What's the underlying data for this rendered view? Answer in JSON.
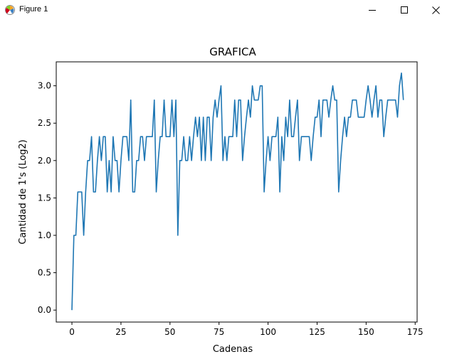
{
  "window": {
    "title": "Figure 1",
    "icon": "matplotlib-figure-icon",
    "controls": [
      "minimize-icon",
      "maximize-icon",
      "close-icon"
    ]
  },
  "chart_data": {
    "type": "line",
    "title": "GRAFICA",
    "xlabel": "Cadenas",
    "ylabel": "Cantidad de 1's (Log2)",
    "xlim": [
      -8,
      176
    ],
    "ylim": [
      -0.16,
      3.32
    ],
    "xticks": [
      0,
      25,
      50,
      75,
      100,
      125,
      150,
      175
    ],
    "xtick_labels": [
      "0",
      "25",
      "50",
      "75",
      "100",
      "125",
      "150",
      "175"
    ],
    "yticks": [
      0.0,
      0.5,
      1.0,
      1.5,
      2.0,
      2.5,
      3.0
    ],
    "ytick_labels": [
      "0.0",
      "0.5",
      "1.0",
      "1.5",
      "2.0",
      "2.5",
      "3.0"
    ],
    "grid": false,
    "line_color": "#1f77b4",
    "series": [
      {
        "values": [
          0,
          1,
          1,
          1.58,
          1.58,
          1.58,
          1,
          1.58,
          2,
          2,
          2.32,
          1.58,
          1.58,
          2,
          2.32,
          2,
          2.32,
          2.32,
          1.58,
          2,
          1.58,
          2.32,
          2,
          2,
          1.58,
          2,
          2.32,
          2.32,
          2.32,
          2,
          2.81,
          1.58,
          1.58,
          2,
          2,
          2.32,
          2.32,
          2,
          2.32,
          2.32,
          2.32,
          2.32,
          2.81,
          1.58,
          2,
          2.32,
          2.32,
          2.81,
          2.32,
          2.32,
          2.32,
          2.81,
          2.32,
          2.81,
          1,
          2,
          2,
          2.32,
          2,
          2,
          2.32,
          2,
          2.32,
          2.58,
          2.32,
          2.58,
          2,
          2.58,
          2,
          2.58,
          2.58,
          2,
          2.58,
          2.81,
          2.58,
          2.81,
          3,
          2,
          2.32,
          2,
          2.32,
          2.32,
          2.32,
          2.81,
          2.32,
          2.81,
          2.81,
          2,
          2.32,
          2.58,
          2.81,
          2.58,
          3,
          2.81,
          2.81,
          2.81,
          3,
          3,
          1.58,
          2,
          2.32,
          2,
          2.32,
          2.32,
          2.32,
          2.58,
          1.58,
          2.32,
          2,
          2.58,
          2.32,
          2.81,
          2.32,
          2.32,
          2.58,
          2.81,
          2,
          2.32,
          2.32,
          2.32,
          2.32,
          2.32,
          2,
          2.32,
          2.58,
          2.58,
          2.81,
          2.32,
          2.81,
          2.81,
          2.81,
          2.58,
          2.81,
          3,
          2.81,
          2.81,
          1.58,
          2,
          2.32,
          2.58,
          2.32,
          2.58,
          2.58,
          2.81,
          2.81,
          2.81,
          2.58,
          2.58,
          2.58,
          2.58,
          2.81,
          3,
          2.81,
          2.58,
          2.81,
          3,
          2.58,
          2.81,
          2.81,
          2.32,
          2.58,
          2.81,
          2.81,
          2.81,
          2.81,
          2.81,
          2.58,
          3,
          3.17,
          2.81
        ]
      }
    ]
  }
}
